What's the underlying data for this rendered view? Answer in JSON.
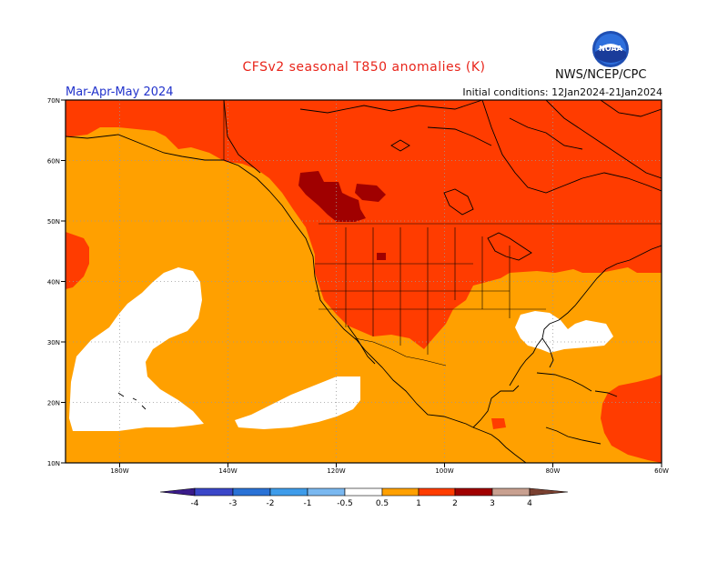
{
  "header": {
    "title": "CFSv2 seasonal T850 anomalies (K)",
    "agency": "NWS/NCEP/CPC",
    "season": "Mar-Apr-May 2024",
    "initial_conditions": "Initial conditions: 12Jan2024-21Jan2024",
    "logo_text": "NOAA"
  },
  "axes": {
    "lat_labels": [
      "70N",
      "60N",
      "50N",
      "40N",
      "30N",
      "20N",
      "10N"
    ],
    "lon_labels": [
      "180W",
      "140W",
      "120W",
      "100W",
      "80W",
      "60W"
    ]
  },
  "legend": {
    "labels": [
      "-4",
      "-3",
      "-2",
      "-1",
      "-0.5",
      "0.5",
      "1",
      "2",
      "3",
      "4"
    ],
    "colors": [
      "#3a1b8a",
      "#3a46c8",
      "#2a72d6",
      "#3e9cea",
      "#7ab8f0",
      "#ffffff",
      "#ffa000",
      "#ff3c00",
      "#a00000",
      "#c8a090",
      "#7a4030"
    ]
  },
  "colors": {
    "orange": "#ffa000",
    "red": "#ff3c00",
    "darkred": "#a00000",
    "white": "#ffffff",
    "title": "#e8241a",
    "season": "#2233cc"
  }
}
